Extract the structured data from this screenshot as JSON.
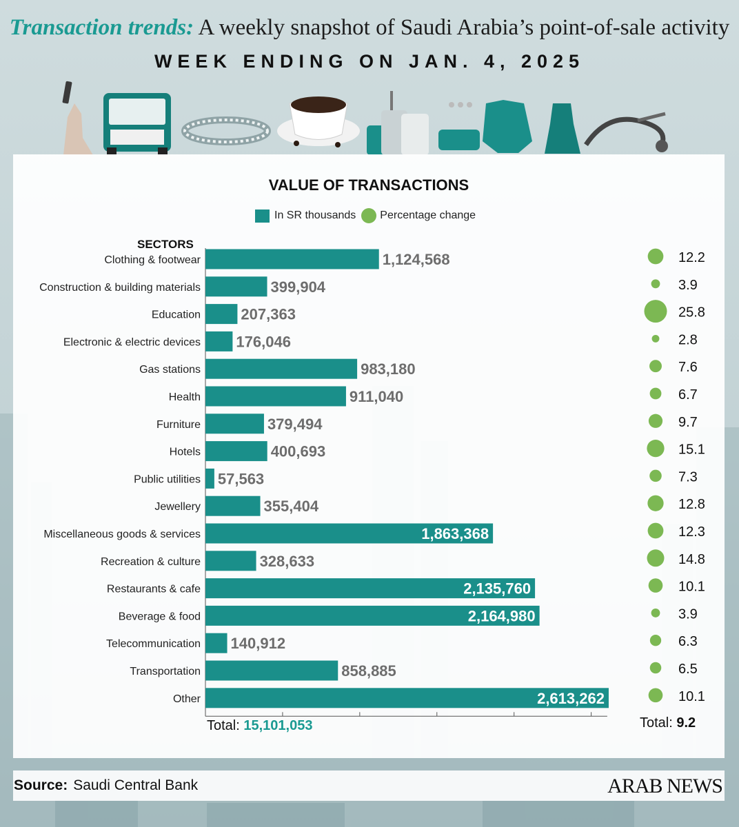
{
  "header": {
    "title_accent": "Transaction trends:",
    "title_rest": " A weekly snapshot of Saudi Arabia’s point-of-sale activity",
    "subtitle": "WEEK ENDING ON JAN. 4, 2025"
  },
  "icons": [
    "phone-hand-icon",
    "bus-icon",
    "bracelet-icon",
    "coffee-cup-icon",
    "luggage-icon",
    "dental-tools-icon",
    "blouse-icon",
    "dress-icon",
    "stethoscope-icon"
  ],
  "legend": {
    "value_label": "In SR thousands",
    "pct_label": "Percentage change"
  },
  "sectors_heading": "SECTORS",
  "totals": {
    "value_label": "Total: ",
    "value": "15,101,053",
    "pct_label": "Total: ",
    "pct": "9.2"
  },
  "source": {
    "label": "Source:",
    "text": "Saudi Central Bank"
  },
  "brand": "ARAB NEWS",
  "colors": {
    "bar": "#1a8f8a",
    "dot": "#7cb853",
    "accent": "#1a9a92",
    "value_text_outside": "#6d6d6d"
  },
  "chart_data": {
    "type": "bar",
    "orientation": "horizontal",
    "title": "VALUE OF TRANSACTIONS",
    "xlim": [
      0,
      2800000
    ],
    "categories": [
      "Clothing & footwear",
      "Construction & building materials",
      "Education",
      "Electronic & electric devices",
      "Gas stations",
      "Health",
      "Furniture",
      "Hotels",
      "Public utilities",
      "Jewellery",
      "Miscellaneous goods & services",
      "Recreation & culture",
      "Restaurants & cafe",
      "Beverage & food",
      "Telecommunication",
      "Transportation",
      "Other"
    ],
    "series": [
      {
        "name": "In SR thousands",
        "values": [
          1124568,
          399904,
          207363,
          176046,
          983180,
          911040,
          379494,
          400693,
          57563,
          355404,
          1863368,
          328633,
          2135760,
          2164980,
          140912,
          858885,
          2613262
        ],
        "labels": [
          "1,124,568",
          "399,904",
          "207,363",
          "176,046",
          "983,180",
          "911,040",
          "379,494",
          "400,693",
          "57,563",
          "355,404",
          "1,863,368",
          "328,633",
          "2,135,760",
          "2,164,980",
          "140,912",
          "858,885",
          "2,613,262"
        ]
      },
      {
        "name": "Percentage change",
        "values": [
          12.2,
          3.9,
          25.8,
          2.8,
          7.6,
          6.7,
          9.7,
          15.1,
          7.3,
          12.8,
          12.3,
          14.8,
          10.1,
          3.9,
          6.3,
          6.5,
          10.1
        ],
        "labels": [
          "12.2",
          "3.9",
          "25.8",
          "2.8",
          "7.6",
          "6.7",
          "9.7",
          "15.1",
          "7.3",
          "12.8",
          "12.3",
          "14.8",
          "10.1",
          "3.9",
          "6.3",
          "6.5",
          "10.1"
        ]
      }
    ]
  }
}
